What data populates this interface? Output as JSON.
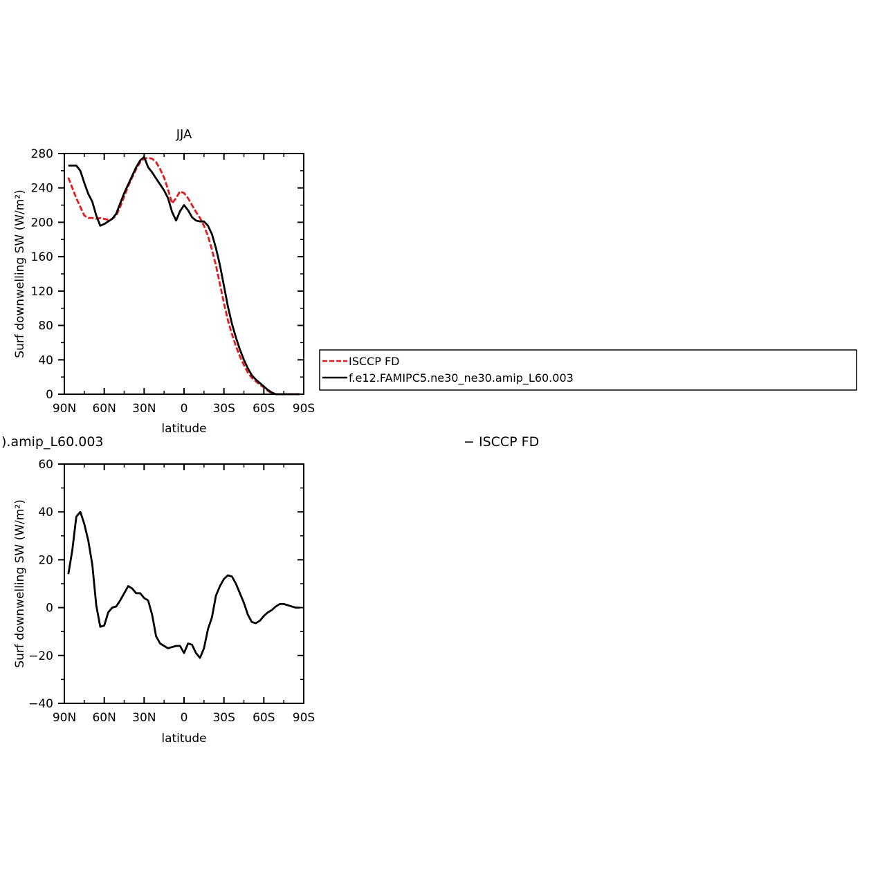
{
  "chart_data": [
    {
      "type": "line",
      "title": "JJA",
      "xlabel": "latitude",
      "ylabel": "Surf downwelling SW (W/m²)",
      "xlim": [
        90,
        -90
      ],
      "ylim": [
        0,
        280
      ],
      "x_ticks": [
        {
          "value": 90,
          "label": "90N"
        },
        {
          "value": 60,
          "label": "60N"
        },
        {
          "value": 30,
          "label": "30N"
        },
        {
          "value": 0,
          "label": "0"
        },
        {
          "value": -30,
          "label": "30S"
        },
        {
          "value": -60,
          "label": "60S"
        },
        {
          "value": -90,
          "label": "90S"
        }
      ],
      "y_ticks": [
        0,
        40,
        80,
        120,
        160,
        200,
        240,
        280
      ],
      "grid": false,
      "legend_position": "right",
      "series": [
        {
          "name": "ISCCP FD",
          "color": "#e41a1c",
          "dash": "dashed",
          "x": [
            87,
            84,
            81,
            78,
            75,
            72,
            69,
            66,
            63,
            60,
            57,
            54,
            51,
            48,
            45,
            42,
            39,
            36,
            33,
            30,
            27,
            24,
            21,
            18,
            15,
            12,
            9,
            6,
            3,
            0,
            -3,
            -6,
            -9,
            -12,
            -15,
            -18,
            -21,
            -24,
            -27,
            -30,
            -33,
            -36,
            -39,
            -42,
            -45,
            -48,
            -51,
            -54,
            -57,
            -60,
            -63,
            -66,
            -69,
            -72,
            -75,
            -78,
            -81,
            -84,
            -87
          ],
          "y": [
            252,
            240,
            228,
            218,
            208,
            205,
            205,
            204,
            205,
            204,
            203,
            204,
            208,
            218,
            230,
            242,
            252,
            262,
            270,
            274,
            275,
            274,
            270,
            262,
            252,
            238,
            222,
            228,
            236,
            234,
            228,
            220,
            212,
            205,
            196,
            184,
            168,
            150,
            128,
            106,
            86,
            70,
            56,
            44,
            34,
            25,
            19,
            15,
            11,
            8,
            4,
            1,
            0,
            0,
            0,
            0,
            0,
            0,
            0
          ]
        },
        {
          "name": "f.e12.FAMIPC5.ne30_ne30.amip_L60.003",
          "color": "#000000",
          "dash": "solid",
          "x": [
            87,
            84,
            81,
            78,
            75,
            72,
            69,
            66,
            63,
            60,
            57,
            54,
            51,
            48,
            45,
            42,
            39,
            36,
            33,
            30,
            27,
            24,
            21,
            18,
            15,
            12,
            9,
            6,
            3,
            0,
            -3,
            -6,
            -9,
            -12,
            -15,
            -18,
            -21,
            -24,
            -27,
            -30,
            -33,
            -36,
            -39,
            -42,
            -45,
            -48,
            -51,
            -54,
            -57,
            -60,
            -63,
            -66,
            -69,
            -72,
            -75,
            -78,
            -81,
            -84,
            -87
          ],
          "y": [
            266,
            266,
            266,
            260,
            246,
            233,
            224,
            208,
            196,
            198,
            201,
            204,
            210,
            222,
            234,
            244,
            254,
            264,
            272,
            276,
            264,
            258,
            251,
            244,
            237,
            228,
            212,
            202,
            213,
            220,
            214,
            206,
            202,
            201,
            201,
            196,
            186,
            170,
            150,
            126,
            102,
            82,
            66,
            52,
            40,
            30,
            22,
            17,
            13,
            9,
            5,
            2,
            0,
            0,
            0,
            0,
            0,
            0,
            0
          ]
        }
      ]
    },
    {
      "type": "line",
      "title": ").amip_L60.003 − ISCCP FD",
      "title_left": ").amip_L60.003",
      "title_right": "− ISCCP FD",
      "xlabel": "latitude",
      "ylabel": "Surf downwelling SW (W/m²)",
      "xlim": [
        90,
        -90
      ],
      "ylim": [
        -40,
        60
      ],
      "x_ticks": [
        {
          "value": 90,
          "label": "90N"
        },
        {
          "value": 60,
          "label": "60N"
        },
        {
          "value": 30,
          "label": "30N"
        },
        {
          "value": 0,
          "label": "0"
        },
        {
          "value": -30,
          "label": "30S"
        },
        {
          "value": -60,
          "label": "60S"
        },
        {
          "value": -90,
          "label": "90S"
        }
      ],
      "y_ticks": [
        -40,
        -20,
        0,
        20,
        40,
        60
      ],
      "grid": false,
      "series": [
        {
          "color": "#000000",
          "dash": "solid",
          "x": [
            87,
            84,
            81,
            78,
            75,
            72,
            69,
            66,
            63,
            60,
            57,
            54,
            51,
            48,
            45,
            42,
            39,
            36,
            33,
            30,
            27,
            24,
            21,
            18,
            15,
            12,
            9,
            6,
            3,
            0,
            -3,
            -6,
            -9,
            -12,
            -15,
            -18,
            -21,
            -24,
            -27,
            -30,
            -33,
            -36,
            -39,
            -42,
            -45,
            -48,
            -51,
            -54,
            -57,
            -60,
            -63,
            -66,
            -69,
            -72,
            -75,
            -78,
            -81,
            -84,
            -87
          ],
          "y": [
            14,
            24,
            38,
            40,
            35,
            28,
            18,
            1,
            -8,
            -7.5,
            -2,
            0,
            0.5,
            3,
            6,
            9,
            8,
            6,
            6,
            4,
            3,
            -3,
            -12,
            -15,
            -16,
            -17,
            -16.5,
            -16,
            -16,
            -19,
            -15,
            -15.5,
            -19,
            -21,
            -17,
            -9,
            -4,
            5,
            9,
            12,
            13.5,
            13,
            10,
            6,
            2,
            -3,
            -6,
            -6.5,
            -5.5,
            -3.5,
            -2,
            -1,
            0.5,
            1.5,
            1.5,
            1,
            0.5,
            0,
            0
          ]
        }
      ]
    }
  ],
  "legend": {
    "items": [
      {
        "label": "ISCCP FD",
        "color": "#e41a1c",
        "dash": "dashed"
      },
      {
        "label": "f.e12.FAMIPC5.ne30_ne30.amip_L60.003",
        "color": "#000000",
        "dash": "solid"
      }
    ]
  }
}
